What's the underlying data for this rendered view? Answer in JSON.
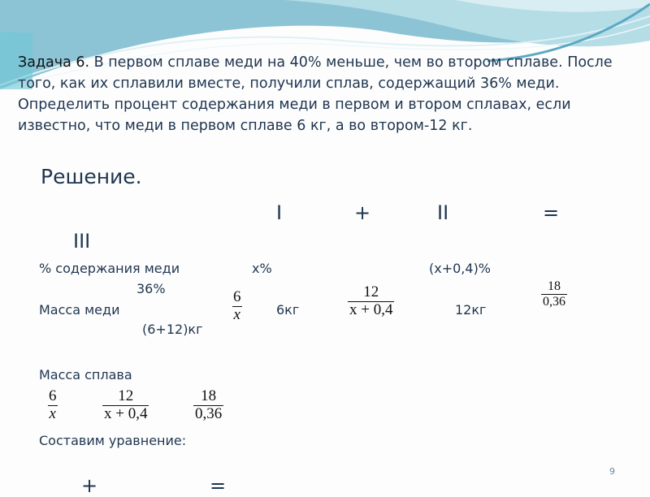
{
  "problem": {
    "lead": "Задача 6.",
    "text": " В первом сплаве меди на 40% меньше, чем во втором сплаве. После того, как их сплавили вместе, получили сплав, содержащий 36% меди. Определить процент содержания меди в первом и втором сплавах, если известно, что меди в первом сплаве 6 кг, а во втором-12 кг."
  },
  "solution": {
    "heading": "Решение.",
    "headers": {
      "i": "I",
      "plus": "+",
      "ii": "II",
      "eq": "=",
      "iii": "III"
    },
    "row_percent": {
      "label": "% содержания меди",
      "i": "x%",
      "ii": "(x+0,4)%",
      "iii": "36%"
    },
    "row_copper": {
      "label": "Масса меди",
      "frac_i": {
        "num": "6",
        "den": "x"
      },
      "i": "6кг",
      "frac_ii": {
        "num": "12",
        "den": "x + 0,4"
      },
      "ii": "12кг",
      "frac_iii": {
        "num": "18",
        "den": "0,36"
      },
      "iii": "(6+12)кг"
    },
    "row_alloy": {
      "label": "Масса сплава",
      "frac_i": {
        "num": "6",
        "den": "x"
      },
      "frac_ii": {
        "num": "12",
        "den": "x + 0,4"
      },
      "frac_iii": {
        "num": "18",
        "den": "0,36"
      }
    },
    "equation_label": "Составим уравнение:",
    "eq_plus": "+",
    "eq_equals": "="
  },
  "page_number": "9",
  "colors": {
    "text": "#1f3550",
    "wave_dark": "#7fbcd0",
    "wave_light": "#a9d7e2"
  }
}
